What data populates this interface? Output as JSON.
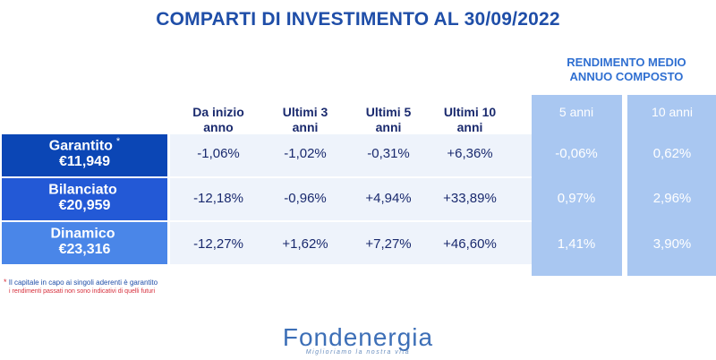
{
  "title": "COMPARTI DI INVESTIMENTO AL 30/09/2022",
  "rendimento_header": [
    "RENDIMENTO MEDIO",
    "ANNUO COMPOSTO"
  ],
  "columns": {
    "inizio": [
      "Da inizio",
      "anno"
    ],
    "ultimi3": [
      "Ultimi 3",
      "anni"
    ],
    "ultimi5": [
      "Ultimi 5",
      "anni"
    ],
    "ultimi10": [
      "Ultimi 10",
      "anni"
    ],
    "medio5": "5 anni",
    "medio10": "10 anni"
  },
  "funds": [
    {
      "name": "Garantito",
      "mark": "*",
      "amount": "€11,949",
      "color": "#0b46b5",
      "values": [
        "-1,06%",
        "-1,02%",
        "-0,31%",
        "+6,36%"
      ],
      "medio": [
        "-0,06%",
        "0,62%"
      ]
    },
    {
      "name": "Bilanciato",
      "mark": "",
      "amount": "€20,959",
      "color": "#2359d6",
      "values": [
        "-12,18%",
        "-0,96%",
        "+4,94%",
        "+33,89%"
      ],
      "medio": [
        "0,97%",
        "2,96%"
      ]
    },
    {
      "name": "Dinamico",
      "mark": "",
      "amount": "€23,316",
      "color": "#4a86e8",
      "values": [
        "-12,27%",
        "+1,62%",
        "+7,27%",
        "+46,60%"
      ],
      "medio": [
        "1,41%",
        "3,90%"
      ]
    }
  ],
  "notes": {
    "star": "*",
    "line1": "Il capitale in capo ai singoli aderenti è garantito",
    "line2": "i rendimenti passati non sono indicativi di quelli futuri"
  },
  "logo": {
    "name": "Fondenergia",
    "tagline": "Miglioriamo la nostra vita"
  }
}
